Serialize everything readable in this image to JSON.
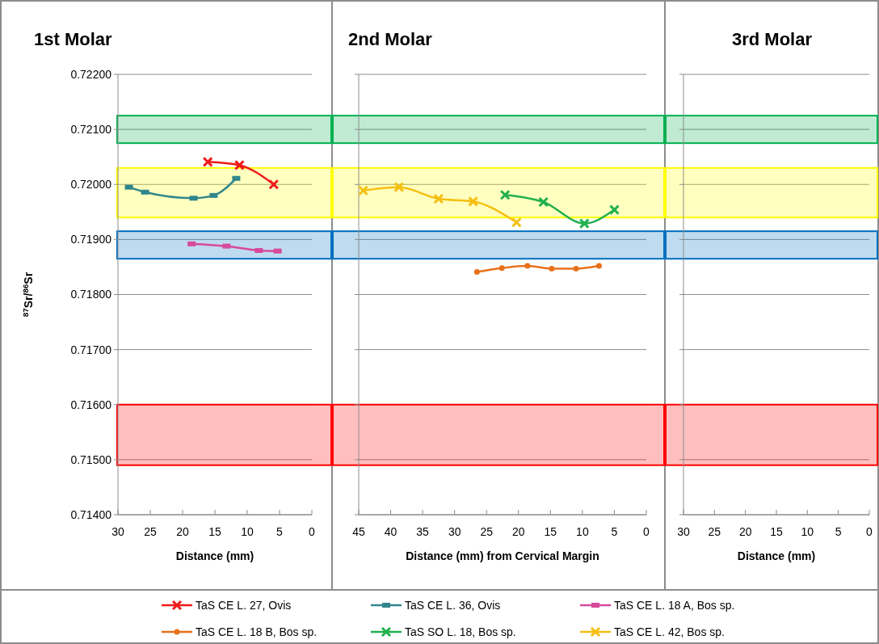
{
  "chart_data": [
    {
      "type": "line",
      "title": "1st Molar",
      "xlabel": "Distance (mm)",
      "ylabel": "$^{87}$Sr/$^{86}$Sr",
      "xlim": [
        30,
        0
      ],
      "xticks": [
        30,
        25,
        20,
        15,
        10,
        5,
        0
      ],
      "ylim": [
        0.714,
        0.722
      ],
      "yticks": [
        {
          "value": 0.714,
          "label": "0.71400"
        },
        {
          "value": 0.715,
          "label": "0.71500"
        },
        {
          "value": 0.716,
          "label": "0.71600"
        },
        {
          "value": 0.717,
          "label": "0.71700"
        },
        {
          "value": 0.718,
          "label": "0.71800"
        },
        {
          "value": 0.719,
          "label": "0.71900"
        },
        {
          "value": 0.72,
          "label": "0.72000"
        },
        {
          "value": 0.721,
          "label": "0.72100"
        },
        {
          "value": 0.722,
          "label": "0.72200"
        }
      ],
      "grid": "y",
      "legend": "bottom",
      "bands": [
        {
          "axis": "y",
          "from": 0.72075,
          "to": 0.72125,
          "color": "#00b050"
        },
        {
          "axis": "y",
          "from": 0.7194,
          "to": 0.7203,
          "color": "#ffff00"
        },
        {
          "axis": "y",
          "from": 0.71865,
          "to": 0.71915,
          "color": "#0070c0"
        },
        {
          "axis": "y",
          "from": 0.7149,
          "to": 0.716,
          "color": "#ff0000"
        }
      ],
      "series": [
        {
          "name": "TaS CE L. 27, Ovis",
          "color": "#f01a1a",
          "marker": "cross",
          "x": [
            16.1,
            11.2,
            5.9
          ],
          "values": [
            0.72041,
            0.72035,
            0.72
          ]
        },
        {
          "name": "TaS CE L. 36, Ovis",
          "color": "#31868c",
          "marker": "square",
          "x": [
            28.3,
            25.8,
            18.3,
            15.2,
            11.7
          ],
          "values": [
            0.71995,
            0.71986,
            0.71975,
            0.7198,
            0.72011
          ]
        },
        {
          "name": "TaS CE L. 18 A, Bos sp.",
          "color": "#d7499c",
          "marker": "square",
          "x": [
            18.6,
            13.2,
            8.2,
            5.3
          ],
          "values": [
            0.71892,
            0.71888,
            0.7188,
            0.71879
          ]
        }
      ]
    },
    {
      "type": "line",
      "title": "2nd Molar",
      "xlabel": "Distance (mm) from Cervical Margin",
      "xlim": [
        45,
        0
      ],
      "xticks": [
        45,
        40,
        35,
        30,
        25,
        20,
        15,
        10,
        5,
        0
      ],
      "ylim": [
        0.714,
        0.722
      ],
      "yticks": [
        0.714,
        0.715,
        0.716,
        0.717,
        0.718,
        0.719,
        0.72,
        0.721,
        0.722
      ],
      "tick_labels": "x",
      "grid": "y",
      "legend": "bottom",
      "bands": [
        {
          "axis": "y",
          "from": 0.72075,
          "to": 0.72125,
          "color": "#00b050"
        },
        {
          "axis": "y",
          "from": 0.7194,
          "to": 0.7203,
          "color": "#ffff00"
        },
        {
          "axis": "y",
          "from": 0.71865,
          "to": 0.71915,
          "color": "#0070c0"
        },
        {
          "axis": "y",
          "from": 0.7149,
          "to": 0.716,
          "color": "#ff0000"
        }
      ],
      "series": [
        {
          "name": "TaS CE L. 18 B, Bos sp.",
          "color": "#e8711c",
          "marker": "circle",
          "x": [
            26.5,
            22.6,
            18.6,
            14.8,
            11.0,
            7.4
          ],
          "values": [
            0.71841,
            0.71848,
            0.71852,
            0.71847,
            0.71847,
            0.71852
          ]
        },
        {
          "name": "TaS SO L. 18, Bos sp.",
          "color": "#22b04e",
          "marker": "cross",
          "x": [
            22.1,
            16.1,
            9.7,
            5.0
          ],
          "values": [
            0.71981,
            0.71968,
            0.71929,
            0.71954
          ]
        },
        {
          "name": "TaS CE L. 42, Bos sp.",
          "color": "#f5bf10",
          "marker": "cross",
          "x": [
            44.3,
            38.7,
            32.5,
            27.1,
            20.3
          ],
          "values": [
            0.71989,
            0.71995,
            0.71974,
            0.71969,
            0.71931
          ]
        }
      ]
    },
    {
      "type": "line",
      "title": "3rd Molar",
      "xlabel": "Distance (mm)",
      "xlim": [
        30,
        0
      ],
      "xticks": [
        30,
        25,
        20,
        15,
        10,
        5,
        0
      ],
      "ylim": [
        0.714,
        0.722
      ],
      "yticks": [
        0.714,
        0.715,
        0.716,
        0.717,
        0.718,
        0.719,
        0.72,
        0.721,
        0.722
      ],
      "tick_labels": "x",
      "grid": "y",
      "bands": [
        {
          "axis": "y",
          "from": 0.72075,
          "to": 0.72125,
          "color": "#00b050"
        },
        {
          "axis": "y",
          "from": 0.7194,
          "to": 0.7203,
          "color": "#ffff00"
        },
        {
          "axis": "y",
          "from": 0.71865,
          "to": 0.71915,
          "color": "#0070c0"
        },
        {
          "axis": "y",
          "from": 0.7149,
          "to": 0.716,
          "color": "#ff0000"
        }
      ]
    }
  ]
}
